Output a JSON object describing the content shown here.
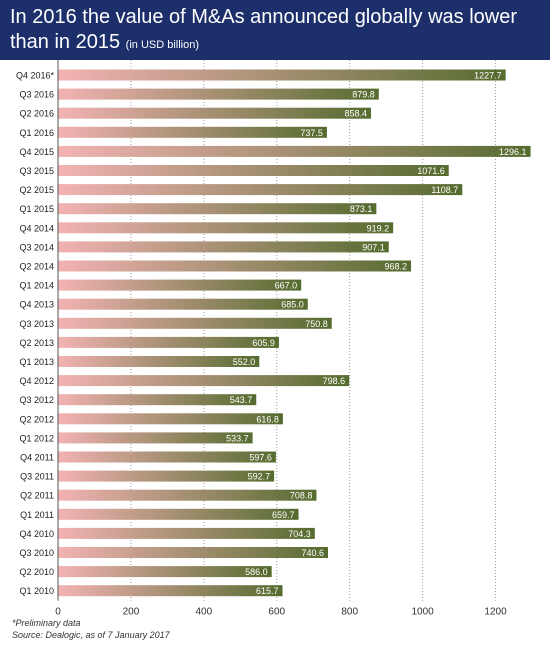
{
  "header": {
    "title": "In 2016 the value of M&As announced globally was lower than in 2015",
    "subtitle": "(in USD billion)"
  },
  "footnotes": {
    "note": "*Preliminary data",
    "source": "Source: Dealogic, as of 7 January 2017"
  },
  "colors": {
    "header_bg": "#1c2f6b",
    "bar_start": "#f3b3b3",
    "bar_end": "#556b2f"
  },
  "chart_data": {
    "type": "bar",
    "orientation": "horizontal",
    "title": "In 2016 the value of M&As announced globally was lower than in 2015",
    "unit": "(in USD billion)",
    "categories": [
      "Q4 2016*",
      "Q3 2016",
      "Q2 2016",
      "Q1 2016",
      "Q4 2015",
      "Q3 2015",
      "Q2 2015",
      "Q1 2015",
      "Q4 2014",
      "Q3 2014",
      "Q2 2014",
      "Q1 2014",
      "Q4 2013",
      "Q3 2013",
      "Q2 2013",
      "Q1 2013",
      "Q4 2012",
      "Q3 2012",
      "Q2 2012",
      "Q1 2012",
      "Q4 2011",
      "Q3 2011",
      "Q2 2011",
      "Q1 2011",
      "Q4 2010",
      "Q3 2010",
      "Q2 2010",
      "Q1 2010"
    ],
    "values": [
      1227.7,
      879.8,
      858.4,
      737.5,
      1296.1,
      1071.6,
      1108.7,
      873.1,
      919.2,
      907.1,
      968.2,
      667.0,
      685.0,
      750.8,
      605.9,
      552.0,
      798.6,
      543.7,
      616.8,
      533.7,
      597.6,
      592.7,
      708.8,
      659.7,
      704.3,
      740.6,
      586.0,
      615.7
    ],
    "value_labels": [
      "1227.7",
      "879.8",
      "858.4",
      "737.5",
      "1296.1",
      "1071.6",
      "1108.7",
      "873.1",
      "919.2",
      "907.1",
      "968.2",
      "667.0",
      "685.0",
      "750.8",
      "605.9",
      "552.0",
      "798.6",
      "543.7",
      "616.8",
      "533.7",
      "597.6",
      "592.7",
      "708.8",
      "659.7",
      "704.3",
      "740.6",
      "586.0",
      "615.7"
    ],
    "xlim": [
      0,
      1300
    ],
    "xticks": [
      0,
      200,
      400,
      600,
      800,
      1000,
      1200
    ],
    "xtick_labels": [
      "0",
      "200",
      "400",
      "600",
      "800",
      "1000",
      "1200"
    ],
    "grid": "vertical dotted",
    "legend": "none"
  }
}
